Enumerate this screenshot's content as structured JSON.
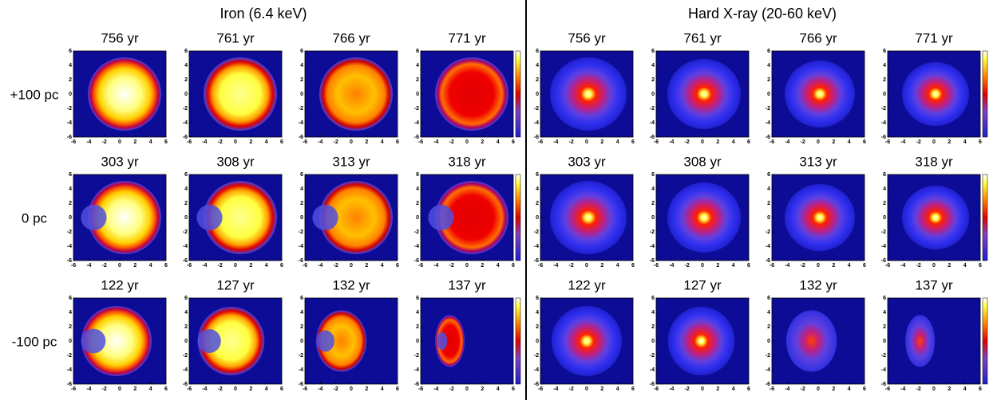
{
  "sections": [
    {
      "title": "Iron (6.4 keV)",
      "panels": [
        [
          "756 yr",
          "761 yr",
          "766 yr",
          "771 yr"
        ],
        [
          "303 yr",
          "308 yr",
          "313 yr",
          "318 yr"
        ],
        [
          "122 yr",
          "127 yr",
          "132 yr",
          "137 yr"
        ]
      ]
    },
    {
      "title": "Hard X-ray (20-60 keV)",
      "panels": [
        [
          "756 yr",
          "761 yr",
          "766 yr",
          "771 yr"
        ],
        [
          "303 yr",
          "308 yr",
          "313 yr",
          "318 yr"
        ],
        [
          "122 yr",
          "127 yr",
          "132 yr",
          "137 yr"
        ]
      ]
    }
  ],
  "row_labels": [
    "+100 pc",
    "0 pc",
    "-100 pc"
  ],
  "axis_ticks": [
    "-6",
    "-4",
    "-2",
    "0",
    "2",
    "4",
    "6"
  ]
}
